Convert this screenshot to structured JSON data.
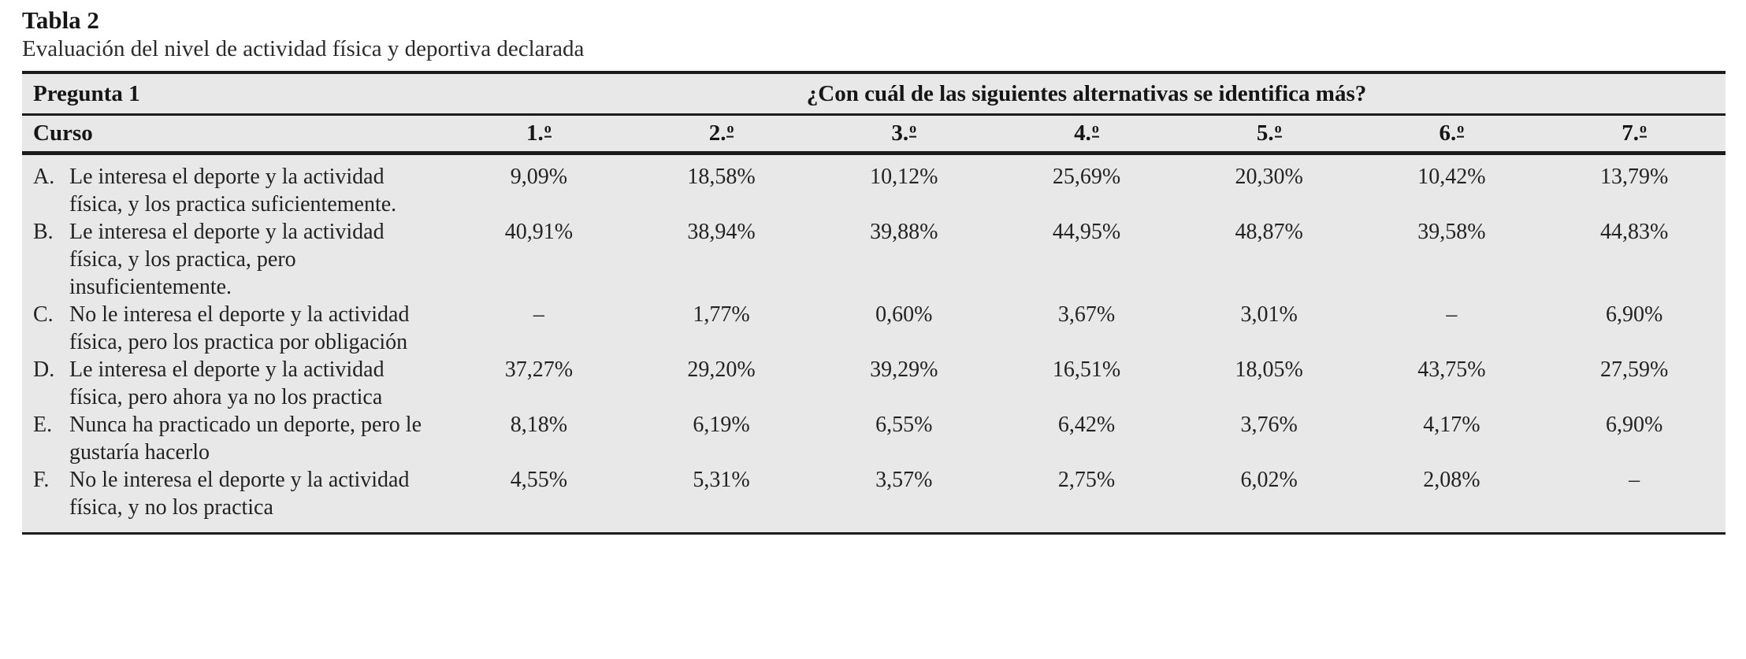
{
  "title": "Tabla 2",
  "subtitle": "Evaluación del nivel de actividad física y deportiva declarada",
  "colors": {
    "band_bg": "#e8e8e9",
    "rule": "#1b1b1b",
    "text": "#232323"
  },
  "table": {
    "question_label": "Pregunta 1",
    "question": "¿Con cuál de las siguientes alternativas se identifica más?",
    "row_header": "Curso",
    "columns": [
      "1.º",
      "2.º",
      "3.º",
      "4.º",
      "5.º",
      "6.º",
      "7.º"
    ],
    "rows": [
      {
        "letter": "A.",
        "label": "Le interesa el deporte y la actividad física, y los practica suficientemente.",
        "values": [
          "9,09%",
          "18,58%",
          "10,12%",
          "25,69%",
          "20,30%",
          "10,42%",
          "13,79%"
        ]
      },
      {
        "letter": "B.",
        "label": "Le interesa el deporte y la actividad física, y los practica, pero insuficientemente.",
        "values": [
          "40,91%",
          "38,94%",
          "39,88%",
          "44,95%",
          "48,87%",
          "39,58%",
          "44,83%"
        ]
      },
      {
        "letter": "C.",
        "label": "No le interesa el deporte y la actividad física, pero los practica por obligación",
        "values": [
          "–",
          "1,77%",
          "0,60%",
          "3,67%",
          "3,01%",
          "–",
          "6,90%"
        ]
      },
      {
        "letter": "D.",
        "label": "Le interesa el deporte y la actividad física, pero ahora ya no los practica",
        "values": [
          "37,27%",
          "29,20%",
          "39,29%",
          "16,51%",
          "18,05%",
          "43,75%",
          "27,59%"
        ]
      },
      {
        "letter": "E.",
        "label": "Nunca ha practicado un deporte, pero le gustaría hacerlo",
        "values": [
          "8,18%",
          "6,19%",
          "6,55%",
          "6,42%",
          "3,76%",
          "4,17%",
          "6,90%"
        ]
      },
      {
        "letter": "F.",
        "label": "No le interesa el deporte y la actividad física, y no los practica",
        "values": [
          "4,55%",
          "5,31%",
          "3,57%",
          "2,75%",
          "6,02%",
          "2,08%",
          "–"
        ]
      }
    ]
  }
}
